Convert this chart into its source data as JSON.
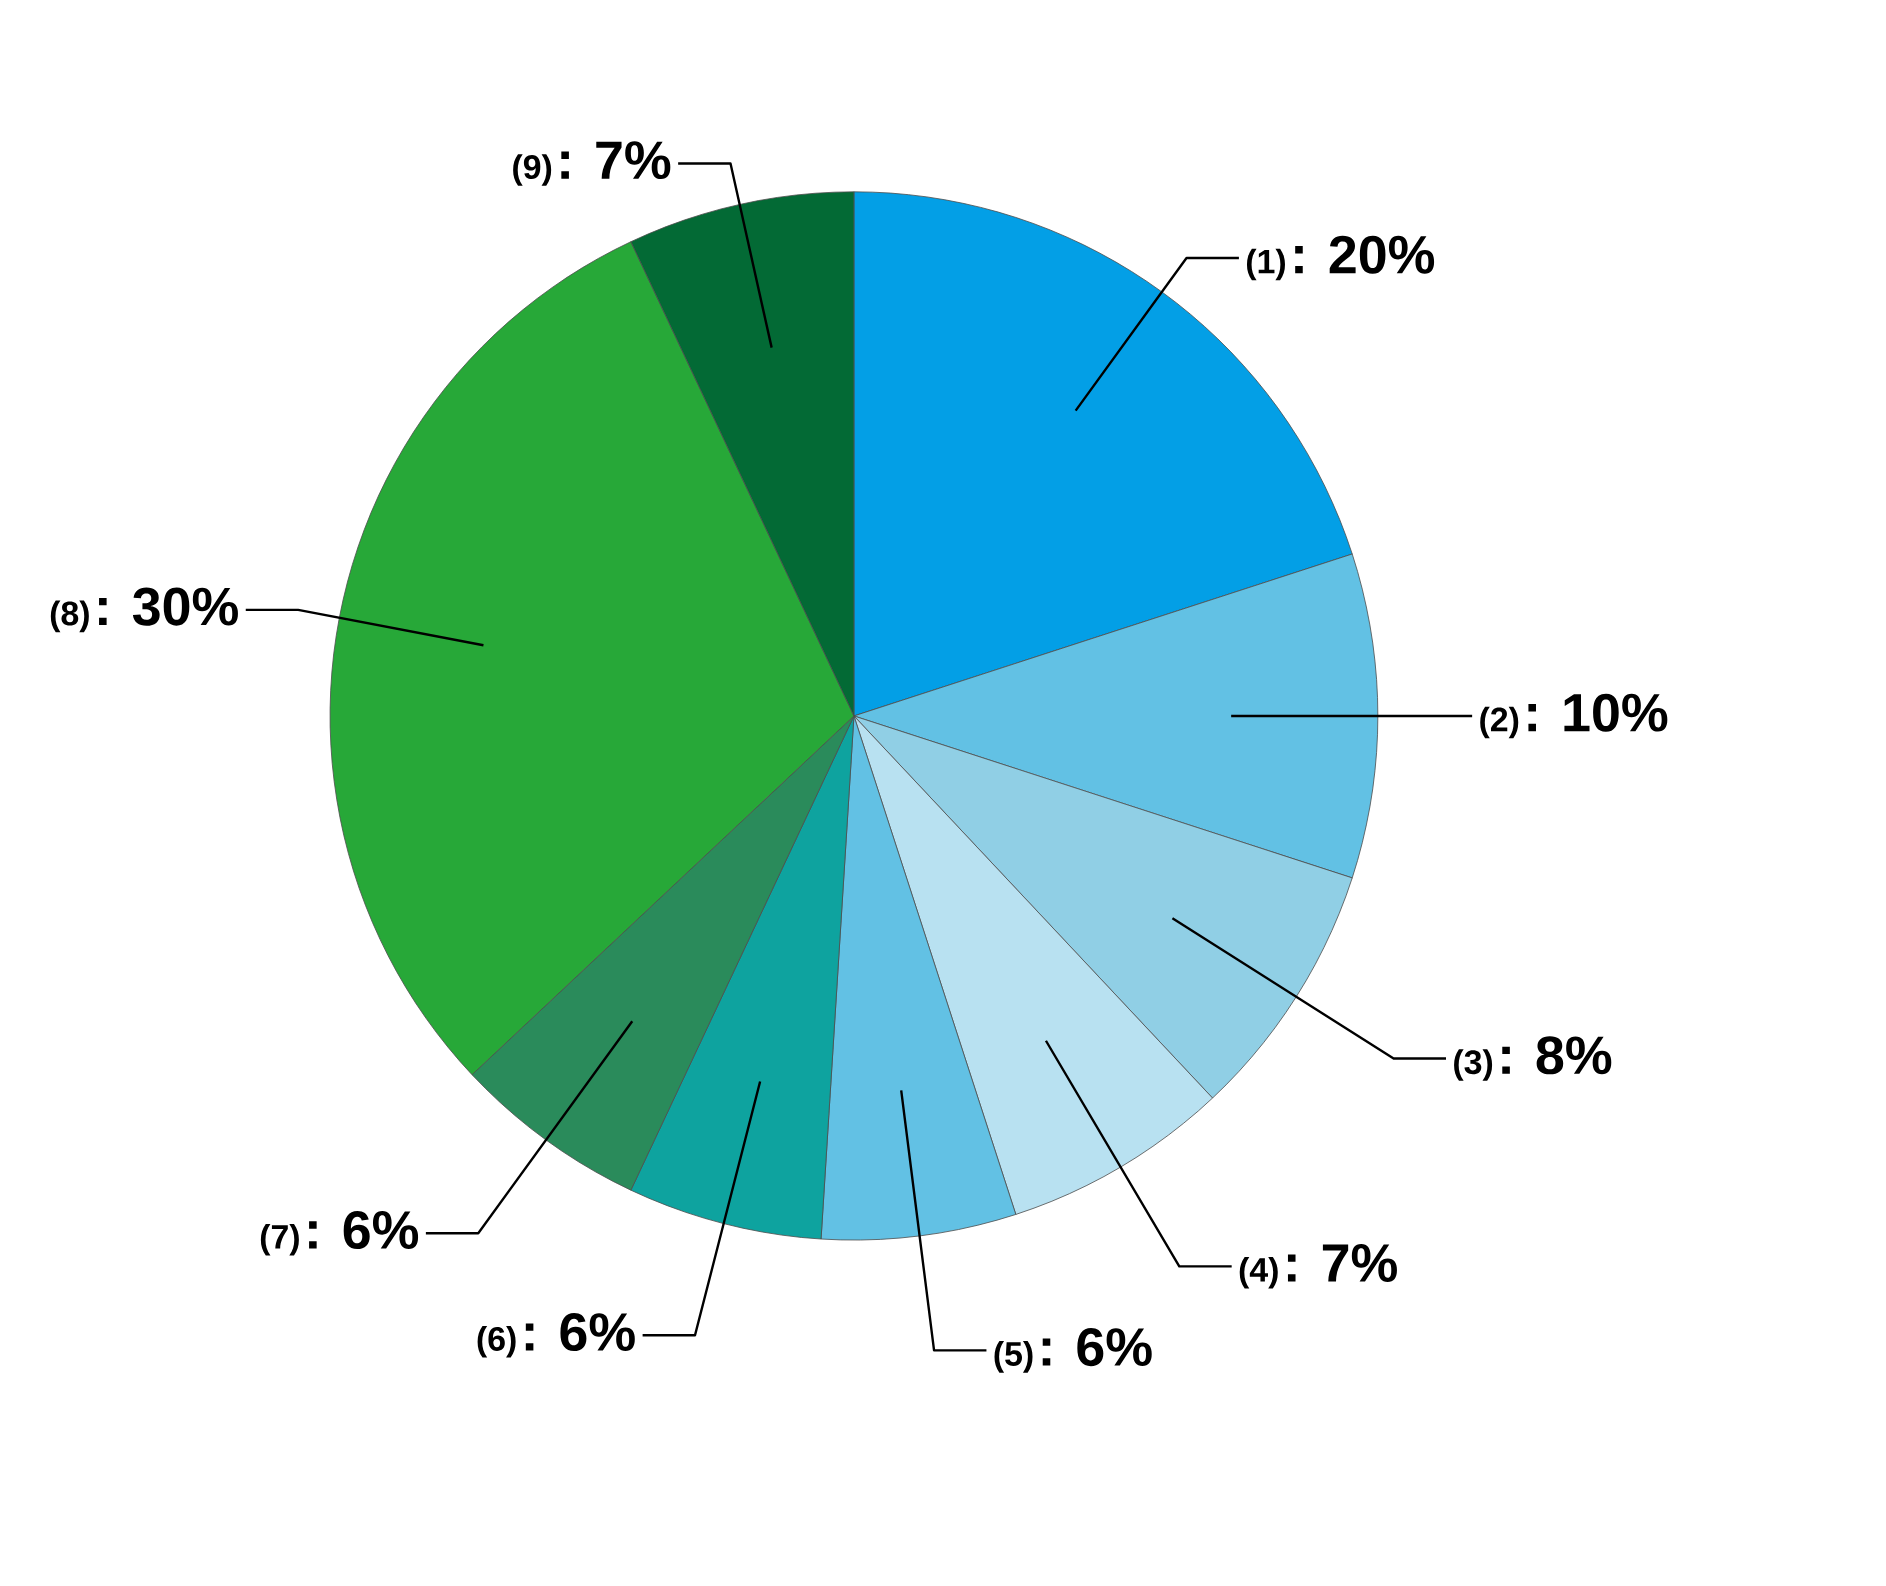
{
  "chart_data": {
    "type": "pie",
    "categories": [
      "(1)",
      "(2)",
      "(3)",
      "(4)",
      "(5)",
      "(6)",
      "(7)",
      "(8)",
      "(9)"
    ],
    "values": [
      20,
      10,
      8,
      7,
      6,
      6,
      6,
      30,
      7
    ],
    "value_labels": [
      ": 20%",
      ": 10%",
      ": 8%",
      ": 7%",
      ": 6%",
      ": 6%",
      ": 6%",
      ": 30%",
      ": 7%"
    ],
    "colors": [
      "#039fe6",
      "#62c1e4",
      "#90cfe5",
      "#b8e1f1",
      "#62c1e4",
      "#0ea39f",
      "#2a8b5b",
      "#27a838",
      "#036a35"
    ]
  }
}
